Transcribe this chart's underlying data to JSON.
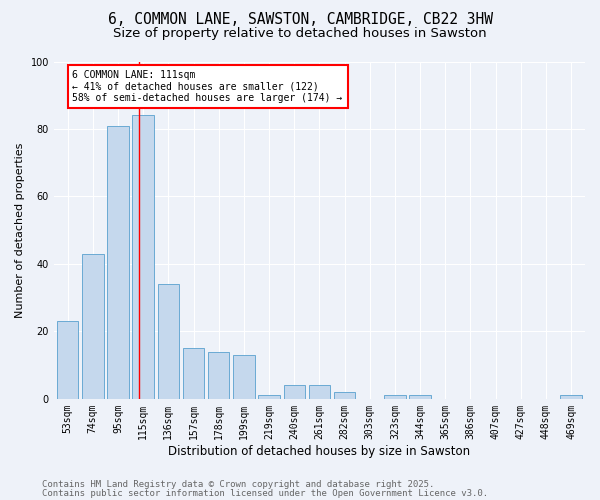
{
  "title1": "6, COMMON LANE, SAWSTON, CAMBRIDGE, CB22 3HW",
  "title2": "Size of property relative to detached houses in Sawston",
  "xlabel": "Distribution of detached houses by size in Sawston",
  "ylabel": "Number of detached properties",
  "categories": [
    "53sqm",
    "74sqm",
    "95sqm",
    "115sqm",
    "136sqm",
    "157sqm",
    "178sqm",
    "199sqm",
    "219sqm",
    "240sqm",
    "261sqm",
    "282sqm",
    "303sqm",
    "323sqm",
    "344sqm",
    "365sqm",
    "386sqm",
    "407sqm",
    "427sqm",
    "448sqm",
    "469sqm"
  ],
  "values": [
    23,
    43,
    81,
    84,
    34,
    15,
    14,
    13,
    1,
    4,
    4,
    2,
    0,
    1,
    1,
    0,
    0,
    0,
    0,
    0,
    1
  ],
  "bar_color": "#c5d8ed",
  "bar_edge_color": "#6aaad4",
  "red_line_index": 2.82,
  "annotation_title": "6 COMMON LANE: 111sqm",
  "annotation_line1": "← 41% of detached houses are smaller (122)",
  "annotation_line2": "58% of semi-detached houses are larger (174) →",
  "footer1": "Contains HM Land Registry data © Crown copyright and database right 2025.",
  "footer2": "Contains public sector information licensed under the Open Government Licence v3.0.",
  "ylim": [
    0,
    100
  ],
  "yticks": [
    0,
    20,
    40,
    60,
    80,
    100
  ],
  "background_color": "#eef2f9",
  "grid_color": "#ffffff",
  "title_fontsize": 10.5,
  "subtitle_fontsize": 9.5,
  "tick_fontsize": 7,
  "footer_fontsize": 6.5,
  "ylabel_fontsize": 8,
  "xlabel_fontsize": 8.5
}
